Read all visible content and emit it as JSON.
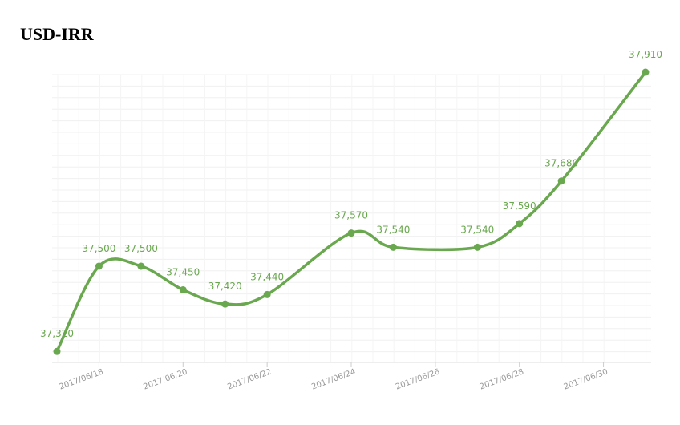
{
  "chart_data": {
    "type": "line",
    "title": "USD-IRR",
    "x": [
      "2017/06/17",
      "2017/06/18",
      "2017/06/19",
      "2017/06/20",
      "2017/06/21",
      "2017/06/22",
      "2017/06/24",
      "2017/06/25",
      "2017/06/27",
      "2017/06/28",
      "2017/06/29",
      "2017/07/01"
    ],
    "series": [
      {
        "name": "USD-IRR",
        "color": "#6aa84f",
        "values": [
          37320,
          37500,
          37500,
          37450,
          37420,
          37440,
          37570,
          37540,
          37540,
          37590,
          37680,
          37910
        ],
        "value_labels": [
          "37,320",
          "37,500",
          "37,500",
          "37,450",
          "37,420",
          "37,440",
          "37,570",
          "37,540",
          "37,540",
          "37,590",
          "37,680",
          "37,910"
        ]
      }
    ],
    "xlim": [
      "2017/06/17",
      "2017/07/01"
    ],
    "xticks": [
      "2017/06/18",
      "2017/06/20",
      "2017/06/22",
      "2017/06/24",
      "2017/06/26",
      "2017/06/28",
      "2017/06/30"
    ],
    "ylim": [
      37300,
      37910
    ],
    "smooth": true
  }
}
